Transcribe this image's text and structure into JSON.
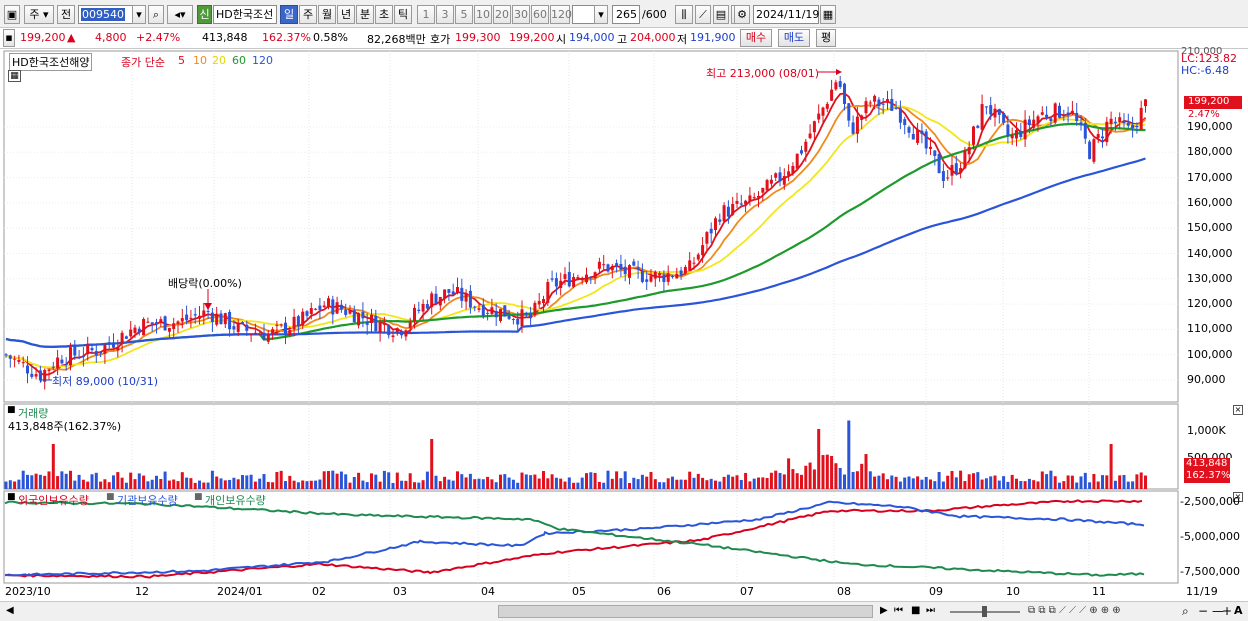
{
  "toolbar": {
    "market_type": "주",
    "price_mode": "전",
    "stock_code": "009540",
    "new_badge": "신",
    "stock_name": "HD한국조선",
    "periods": [
      "일",
      "주",
      "월",
      "년",
      "분",
      "초",
      "틱"
    ],
    "active_period": "일",
    "intervals": [
      "1",
      "3",
      "5",
      "10",
      "20",
      "30",
      "60",
      "120"
    ],
    "count": "265",
    "count_max": "/600",
    "date": "2024/11/19"
  },
  "quote": {
    "price": "199,200",
    "change_arrow": "▲",
    "change": "4,800",
    "change_pct": "+2.47%",
    "volume": "413,848",
    "volume_ratio": "162.37%",
    "turnover": "0.58%",
    "amount": "82,268백만",
    "bid_label": "호가",
    "ask": "199,300",
    "bid": "199,200",
    "open_label": "시",
    "open": "194,000",
    "high_label": "고",
    "high": "204,000",
    "low_label": "저",
    "low": "191,900",
    "buy_button": "매수",
    "sell_button": "매도",
    "eval_button": "평"
  },
  "price_panel": {
    "legend_name": "HD한국조선해양",
    "legend_series": "종가 단순",
    "ma_periods": [
      "5",
      "10",
      "20",
      "60",
      "120"
    ],
    "ma_colors": [
      "#e0101c",
      "#f08a1c",
      "#f2e61a",
      "#1e9a2c",
      "#2a55d8"
    ],
    "lc": "LC:123.82",
    "hc": "HC:-6.48",
    "current_price_tag": "199,200",
    "current_pct_tag": "2.47%",
    "high_annotation": "최고 213,000 (08/01)",
    "low_annotation": "최저 89,000 (10/31)",
    "dividend_annotation": "배당락(0.00%)",
    "y_ticks": [
      "190,000",
      "180,000",
      "170,000",
      "160,000",
      "150,000",
      "140,000",
      "130,000",
      "120,000",
      "110,000",
      "100,000",
      "90,000"
    ],
    "y_partial_top": "210,000"
  },
  "volume_panel": {
    "title": "거래량",
    "value": "413,848주(162.37%)",
    "y_ticks": [
      "1,000K",
      "500,000"
    ],
    "current_tag": "413,848",
    "current_pct": "162.37%"
  },
  "holding_panel": {
    "series": [
      "외국인보유수량",
      "기관보유수량",
      "개인보유수량"
    ],
    "colors": [
      "#d8001e",
      "#2a55d8",
      "#1e8a50"
    ],
    "y_ticks": [
      "-2,500,000",
      "-5,000,000",
      "-7,500,000"
    ]
  },
  "x_axis": {
    "labels": [
      "2023/10",
      "12",
      "2024/01",
      "02",
      "03",
      "04",
      "05",
      "06",
      "07",
      "08",
      "09",
      "10",
      "11"
    ],
    "end_label": "11/19"
  }
}
